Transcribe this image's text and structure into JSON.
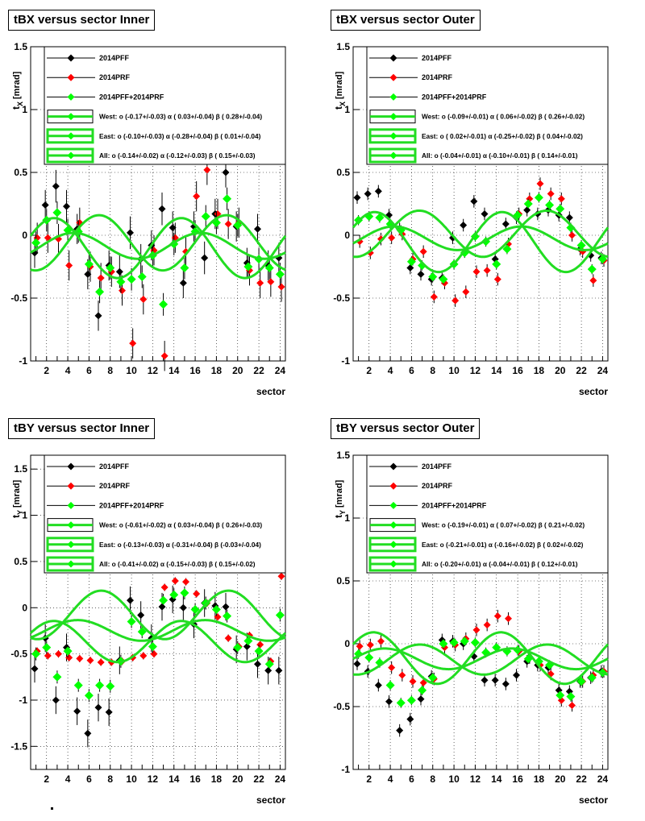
{
  "chart_data": [
    {
      "type": "scatter",
      "title": "tBX versus  sector Inner",
      "xlabel": "sector",
      "ylabel_main": "t",
      "ylabel_sub": "X",
      "ylabel_unit": "[mrad]",
      "xlim": [
        0.5,
        24.5
      ],
      "ylim": [
        -1,
        1.5
      ],
      "xticks": [
        "2",
        "4",
        "6",
        "8",
        "10",
        "12",
        "14",
        "16",
        "18",
        "20",
        "22",
        "24"
      ],
      "yticks": [
        "-1",
        "-0.5",
        "0",
        "0.5",
        "1",
        "1.5"
      ],
      "grid": true,
      "legend": [
        "2014PFF",
        "2014PRF",
        "2014PFF+2014PRF",
        "West: o (-0.17+/-0.03) α ( 0.03+/-0.04) β ( 0.28+/-0.04)",
        "East: o (-0.10+/-0.03) α (-0.28+/-0.04) β ( 0.01+/-0.04)",
        "All: o (-0.14+/-0.02) α (-0.12+/-0.03) β ( 0.15+/-0.03)"
      ],
      "series": [
        {
          "color": "#000000",
          "values": [
            -0.14,
            0.24,
            0.39,
            0.23,
            0.05,
            -0.31,
            -0.64,
            -0.24,
            -0.29,
            0.02,
            -0.19,
            -0.08,
            0.21,
            0.06,
            -0.38,
            0.07,
            -0.18,
            0.17,
            0.5,
            0.07,
            -0.22,
            0.05,
            -0.24,
            -0.18
          ],
          "errors": [
            0.12,
            0.12,
            0.13,
            0.13,
            0.12,
            0.12,
            0.12,
            0.12,
            0.13,
            0.13,
            0.12,
            0.12,
            0.13,
            0.13,
            0.12,
            0.12,
            0.13,
            0.12,
            0.12,
            0.12,
            0.12,
            0.12,
            0.12,
            0.12
          ]
        },
        {
          "color": "#ff0000",
          "values": [
            -0.02,
            -0.02,
            -0.03,
            -0.24,
            0.1,
            -0.25,
            -0.34,
            -0.29,
            -0.44,
            -0.86,
            -0.51,
            -0.12,
            -0.96,
            -0.02,
            -0.13,
            0.31,
            0.52,
            0.17,
            0.09,
            0.1,
            -0.28,
            -0.38,
            -0.37,
            -0.41
          ],
          "errors": [
            0.12,
            0.12,
            0.12,
            0.12,
            0.12,
            0.12,
            0.12,
            0.12,
            0.12,
            0.12,
            0.12,
            0.12,
            0.12,
            0.12,
            0.12,
            0.12,
            0.12,
            0.12,
            0.12,
            0.12,
            0.12,
            0.12,
            0.12,
            0.12
          ]
        },
        {
          "color": "#00ff00",
          "values": [
            -0.06,
            0.12,
            0.18,
            0.04,
            0.03,
            -0.23,
            -0.45,
            -0.26,
            -0.37,
            -0.35,
            -0.33,
            -0.16,
            -0.55,
            -0.07,
            -0.26,
            0.03,
            0.15,
            0.1,
            0.29,
            0.08,
            -0.25,
            -0.19,
            -0.26,
            -0.31
          ],
          "errors": [
            0.09,
            0.09,
            0.09,
            0.09,
            0.09,
            0.09,
            0.09,
            0.09,
            0.09,
            0.09,
            0.09,
            0.09,
            0.09,
            0.09,
            0.09,
            0.09,
            0.09,
            0.09,
            0.09,
            0.09,
            0.09,
            0.09,
            0.09,
            0.09
          ]
        }
      ],
      "fits": [
        {
          "name": "West",
          "o": -0.17,
          "a": 0.03,
          "b": 0.28
        },
        {
          "name": "East",
          "o": -0.1,
          "a": -0.28,
          "b": 0.01
        },
        {
          "name": "All",
          "o": -0.14,
          "a": -0.12,
          "b": 0.15
        }
      ]
    },
    {
      "type": "scatter",
      "title": "tBX versus  sector Outer",
      "xlabel": "sector",
      "ylabel_main": "t",
      "ylabel_sub": "X",
      "ylabel_unit": "[mrad]",
      "xlim": [
        0.5,
        24.5
      ],
      "ylim": [
        -1,
        1.5
      ],
      "xticks": [
        "2",
        "4",
        "6",
        "8",
        "10",
        "12",
        "14",
        "16",
        "18",
        "20",
        "22",
        "24"
      ],
      "yticks": [
        "-1",
        "-0.5",
        "0",
        "0.5",
        "1",
        "1.5"
      ],
      "grid": true,
      "legend": [
        "2014PFF",
        "2014PRF",
        "2014PFF+2014PRF",
        "West: o (-0.09+/-0.01) α ( 0.06+/-0.02) β ( 0.26+/-0.02)",
        "East: o ( 0.02+/-0.01) α (-0.25+/-0.02) β ( 0.04+/-0.02)",
        "All: o (-0.04+/-0.01) α (-0.10+/-0.01) β ( 0.14+/-0.01)"
      ],
      "series": [
        {
          "color": "#000000",
          "values": [
            0.3,
            0.33,
            0.35,
            0.16,
            0.05,
            -0.26,
            -0.31,
            -0.35,
            -0.34,
            -0.02,
            0.08,
            0.27,
            0.17,
            -0.19,
            0.09,
            0.14,
            0.2,
            0.17,
            0.2,
            0.16,
            0.14,
            -0.11,
            -0.16,
            -0.18
          ],
          "errors": [
            0.05,
            0.05,
            0.05,
            0.05,
            0.05,
            0.05,
            0.05,
            0.05,
            0.05,
            0.05,
            0.05,
            0.05,
            0.05,
            0.05,
            0.05,
            0.05,
            0.05,
            0.05,
            0.05,
            0.05,
            0.05,
            0.05,
            0.05,
            0.05
          ]
        },
        {
          "color": "#ff0000",
          "values": [
            -0.05,
            -0.14,
            -0.03,
            -0.02,
            0.01,
            -0.19,
            -0.13,
            -0.49,
            -0.38,
            -0.52,
            -0.45,
            -0.29,
            -0.28,
            -0.35,
            -0.07,
            0.17,
            0.29,
            0.41,
            0.33,
            0.29,
            0.0,
            -0.13,
            -0.36,
            -0.2
          ],
          "errors": [
            0.05,
            0.05,
            0.05,
            0.05,
            0.05,
            0.05,
            0.05,
            0.05,
            0.05,
            0.05,
            0.05,
            0.05,
            0.05,
            0.05,
            0.05,
            0.05,
            0.05,
            0.05,
            0.05,
            0.05,
            0.05,
            0.05,
            0.05,
            0.05
          ]
        },
        {
          "color": "#00ff00",
          "values": [
            0.12,
            0.15,
            0.14,
            0.09,
            0.04,
            -0.21,
            -0.24,
            -0.33,
            -0.35,
            -0.23,
            -0.14,
            -0.01,
            -0.05,
            -0.23,
            -0.11,
            0.16,
            0.25,
            0.3,
            0.24,
            0.21,
            0.06,
            -0.08,
            -0.27,
            -0.19
          ],
          "errors": [
            0.04,
            0.04,
            0.04,
            0.04,
            0.04,
            0.04,
            0.04,
            0.04,
            0.04,
            0.04,
            0.04,
            0.04,
            0.04,
            0.04,
            0.04,
            0.04,
            0.04,
            0.04,
            0.04,
            0.04,
            0.04,
            0.04,
            0.04,
            0.04
          ]
        }
      ],
      "fits": [
        {
          "name": "West",
          "o": -0.09,
          "a": 0.06,
          "b": 0.26
        },
        {
          "name": "East",
          "o": 0.02,
          "a": -0.25,
          "b": 0.04
        },
        {
          "name": "All",
          "o": -0.04,
          "a": -0.1,
          "b": 0.14
        }
      ]
    },
    {
      "type": "scatter",
      "title": "tBY versus  sector Inner",
      "xlabel": "sector",
      "ylabel_main": "t",
      "ylabel_sub": "Y",
      "ylabel_unit": "[mrad]",
      "xlim": [
        0.5,
        24.5
      ],
      "ylim": [
        -1.75,
        1.65
      ],
      "xticks": [
        "2",
        "4",
        "6",
        "8",
        "10",
        "12",
        "14",
        "16",
        "18",
        "20",
        "22",
        "24"
      ],
      "yticks": [
        "-1.5",
        "-1",
        "-0.5",
        "0",
        "0.5",
        "1",
        "1.5"
      ],
      "grid": true,
      "legend": [
        "2014PFF",
        "2014PRF",
        "2014PFF+2014PRF",
        "West: o (-0.61+/-0.02) α ( 0.03+/-0.04) β ( 0.26+/-0.03)",
        "East: o (-0.13+/-0.03) α (-0.31+/-0.04) β (-0.03+/-0.04)",
        "All: o (-0.41+/-0.02) α (-0.15+/-0.03) β ( 0.15+/-0.02)"
      ],
      "series": [
        {
          "color": "#000000",
          "values": [
            -0.66,
            -0.33,
            -1.0,
            -0.43,
            -1.12,
            -1.36,
            -1.08,
            -1.13,
            -0.57,
            0.08,
            -0.08,
            -0.33,
            0.01,
            0.09,
            0.0,
            -0.18,
            0.05,
            0.02,
            0.01,
            -0.45,
            -0.42,
            -0.61,
            -0.68,
            -0.68
          ],
          "errors": [
            0.15,
            0.15,
            0.15,
            0.15,
            0.15,
            0.15,
            0.15,
            0.15,
            0.15,
            0.15,
            0.15,
            0.15,
            0.15,
            0.15,
            0.15,
            0.15,
            0.15,
            0.15,
            0.15,
            0.15,
            0.15,
            0.15,
            0.15,
            0.15
          ]
        },
        {
          "color": "#ff0000",
          "values": [
            -0.47,
            -0.52,
            -0.5,
            -0.54,
            -0.55,
            -0.57,
            -0.59,
            -0.59,
            -0.58,
            -0.54,
            -0.52,
            -0.5,
            0.22,
            0.29,
            0.28,
            0.15,
            0.05,
            -0.1,
            -0.33,
            -0.42,
            -0.3,
            -0.4,
            -0.58,
            0.34
          ],
          "errors": [
            0.04,
            0.04,
            0.04,
            0.04,
            0.04,
            0.04,
            0.04,
            0.04,
            0.04,
            0.04,
            0.04,
            0.04,
            0.04,
            0.04,
            0.04,
            0.04,
            0.04,
            0.04,
            0.04,
            0.04,
            0.04,
            0.04,
            0.04,
            0.04
          ]
        },
        {
          "color": "#00ff00",
          "values": [
            -0.5,
            -0.43,
            -0.75,
            -0.47,
            -0.84,
            -0.95,
            -0.84,
            -0.85,
            -0.58,
            -0.15,
            -0.26,
            -0.42,
            0.08,
            0.14,
            0.16,
            -0.02,
            0.05,
            -0.02,
            -0.09,
            -0.43,
            -0.36,
            -0.47,
            -0.61,
            -0.08
          ],
          "errors": [
            0.07,
            0.07,
            0.07,
            0.07,
            0.07,
            0.07,
            0.07,
            0.07,
            0.07,
            0.07,
            0.07,
            0.07,
            0.07,
            0.07,
            0.07,
            0.07,
            0.07,
            0.07,
            0.07,
            0.07,
            0.07,
            0.07,
            0.07,
            0.07
          ]
        }
      ],
      "fits": [
        {
          "name": "West",
          "o": -0.61,
          "a": 0.03,
          "b": 0.26
        },
        {
          "name": "East",
          "o": -0.13,
          "a": -0.31,
          "b": -0.03
        },
        {
          "name": "All",
          "o": -0.41,
          "a": -0.15,
          "b": 0.15
        }
      ]
    },
    {
      "type": "scatter",
      "title": "tBY versus  sector Outer",
      "xlabel": "sector",
      "ylabel_main": "t",
      "ylabel_sub": "Y",
      "ylabel_unit": "[mrad]",
      "xlim": [
        0.5,
        24.5
      ],
      "ylim": [
        -1,
        1.5
      ],
      "xticks": [
        "2",
        "4",
        "6",
        "8",
        "10",
        "12",
        "14",
        "16",
        "18",
        "20",
        "22",
        "24"
      ],
      "yticks": [
        "-1",
        "-0.5",
        "0",
        "0.5",
        "1",
        "1.5"
      ],
      "grid": true,
      "legend": [
        "2014PFF",
        "2014PRF",
        "2014PFF+2014PRF",
        "West: o (-0.19+/-0.01) α ( 0.07+/-0.02) β ( 0.21+/-0.02)",
        "East: o (-0.21+/-0.01) α (-0.16+/-0.02) β ( 0.02+/-0.02)",
        "All: o (-0.20+/-0.01) α (-0.04+/-0.01) β ( 0.12+/-0.01)"
      ],
      "series": [
        {
          "color": "#000000",
          "values": [
            -0.16,
            -0.22,
            -0.33,
            -0.46,
            -0.69,
            -0.6,
            -0.44,
            -0.26,
            0.03,
            0.02,
            0.0,
            -0.1,
            -0.29,
            -0.29,
            -0.32,
            -0.25,
            -0.14,
            -0.17,
            -0.19,
            -0.37,
            -0.38,
            -0.3,
            -0.27,
            -0.22
          ],
          "errors": [
            0.05,
            0.05,
            0.05,
            0.05,
            0.05,
            0.05,
            0.05,
            0.05,
            0.05,
            0.05,
            0.05,
            0.05,
            0.05,
            0.05,
            0.05,
            0.05,
            0.05,
            0.05,
            0.05,
            0.05,
            0.05,
            0.05,
            0.05,
            0.05
          ]
        },
        {
          "color": "#ff0000",
          "values": [
            -0.02,
            -0.01,
            0.02,
            -0.19,
            -0.25,
            -0.3,
            -0.31,
            -0.28,
            -0.03,
            -0.01,
            0.04,
            0.11,
            0.15,
            0.22,
            0.2,
            -0.06,
            -0.11,
            -0.17,
            -0.24,
            -0.45,
            -0.49,
            -0.3,
            -0.25,
            -0.22
          ],
          "errors": [
            0.05,
            0.05,
            0.05,
            0.05,
            0.05,
            0.05,
            0.05,
            0.05,
            0.05,
            0.05,
            0.05,
            0.05,
            0.05,
            0.05,
            0.05,
            0.05,
            0.05,
            0.05,
            0.05,
            0.05,
            0.05,
            0.05,
            0.05,
            0.05
          ]
        },
        {
          "color": "#00ff00",
          "values": [
            -0.08,
            -0.11,
            -0.15,
            -0.33,
            -0.47,
            -0.45,
            -0.37,
            -0.27,
            0.0,
            0.01,
            0.02,
            0.01,
            -0.07,
            -0.03,
            -0.06,
            -0.05,
            -0.12,
            -0.14,
            -0.17,
            -0.41,
            -0.42,
            -0.3,
            -0.27,
            -0.23
          ],
          "errors": [
            0.04,
            0.04,
            0.04,
            0.04,
            0.04,
            0.04,
            0.04,
            0.04,
            0.04,
            0.04,
            0.04,
            0.04,
            0.04,
            0.04,
            0.04,
            0.04,
            0.04,
            0.04,
            0.04,
            0.04,
            0.04,
            0.04,
            0.04,
            0.04
          ]
        }
      ],
      "fits": [
        {
          "name": "West",
          "o": -0.19,
          "a": 0.07,
          "b": 0.21
        },
        {
          "name": "East",
          "o": -0.21,
          "a": -0.16,
          "b": 0.02
        },
        {
          "name": "All",
          "o": -0.2,
          "a": -0.04,
          "b": 0.12
        }
      ]
    }
  ]
}
